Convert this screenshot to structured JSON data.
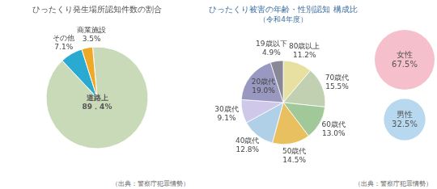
{
  "chart_data": [
    {
      "type": "pie",
      "title": "ひったくり発生場所認知件数の割合",
      "categories": [
        "道路上",
        "その他",
        "商業施設"
      ],
      "values": [
        89.4,
        7.1,
        3.5
      ],
      "value_labels": [
        "89．4%",
        "7.1%",
        "3.5%"
      ],
      "colors": [
        "#c8dab8",
        "#2aaad0",
        "#f0a828"
      ],
      "data_labels": true,
      "annotations": [
        "（出典：警察庁犯罪情勢）"
      ]
    },
    {
      "type": "pie",
      "title": "ひったくり被害の年齢・性別認知 構成比",
      "subtitle": "（令和4年度）",
      "categories": [
        "80歳以上",
        "70歳代",
        "60歳代",
        "50歳代",
        "40歳代",
        "30歳代",
        "20歳代",
        "19歳以下"
      ],
      "values": [
        11.2,
        15.5,
        13.0,
        14.5,
        12.8,
        9.1,
        19.0,
        4.9
      ],
      "value_labels": [
        "11.2%",
        "15.5%",
        "13.0%",
        "14.5%",
        "12.8%",
        "9.1%",
        "19.0%",
        "4.9%"
      ],
      "colors": [
        "#e8e0a0",
        "#c0d0b0",
        "#a0c898",
        "#e8c060",
        "#b0d0e8",
        "#d0c8e8",
        "#9898c0",
        "#888898"
      ],
      "data_labels": true,
      "annotations": [
        "（出典：警察庁犯罪情勢）"
      ]
    },
    {
      "type": "bubble",
      "categories": [
        "女性",
        "男性"
      ],
      "values": [
        67.5,
        32.5
      ],
      "value_labels": [
        "67.5%",
        "32.5%"
      ],
      "colors": [
        "#f5c0cc",
        "#b8d8f0"
      ],
      "data_labels": true,
      "tick_labels": false
    }
  ]
}
